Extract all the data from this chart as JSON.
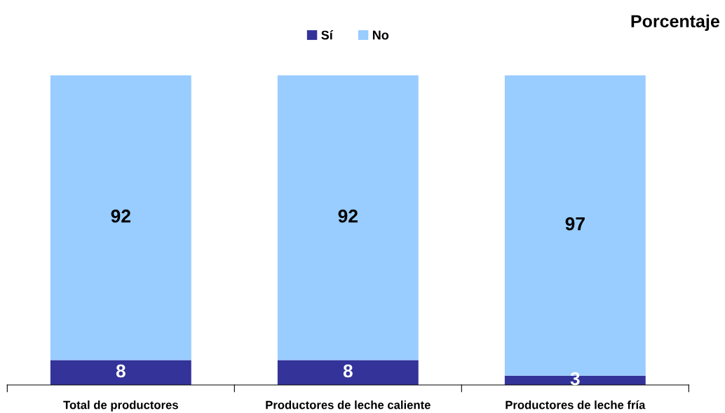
{
  "chart_data": {
    "type": "bar",
    "title": "Porcentaje",
    "categories": [
      "Total de productores",
      "Productores de leche caliente",
      "Productores de leche fría"
    ],
    "stacked": true,
    "data_labels": true,
    "legend": "top",
    "grid": false,
    "series": [
      {
        "name": "Sí",
        "color": "#333399",
        "values": [
          8,
          8,
          3
        ]
      },
      {
        "name": "No",
        "color": "#99ccff",
        "values": [
          92,
          92,
          97
        ]
      }
    ]
  }
}
